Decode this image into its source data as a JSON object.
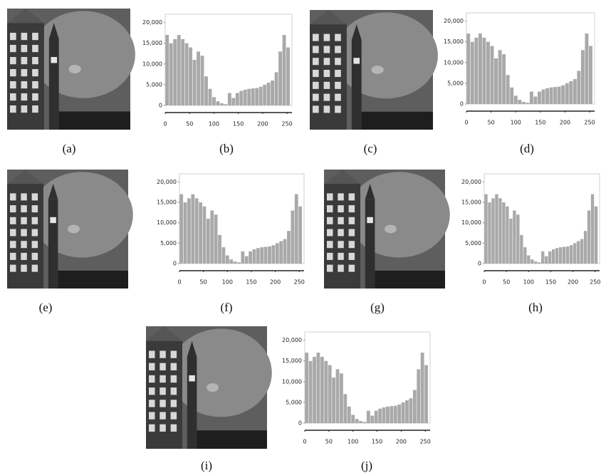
{
  "chart_data": [
    {
      "type": "histogram",
      "caption": "(b)",
      "bins": [
        0,
        8,
        16,
        24,
        32,
        40,
        48,
        56,
        64,
        72,
        80,
        88,
        96,
        104,
        112,
        120,
        128,
        136,
        144,
        152,
        160,
        168,
        176,
        184,
        192,
        200,
        208,
        216,
        224,
        232,
        240,
        248,
        256
      ],
      "values": [
        17000,
        15000,
        16000,
        17000,
        16000,
        15000,
        14000,
        11000,
        13000,
        12000,
        7000,
        4000,
        2000,
        1000,
        500,
        300,
        3000,
        1800,
        3000,
        3500,
        3800,
        4000,
        4100,
        4200,
        4500,
        5000,
        5500,
        6000,
        8000,
        13000,
        17000,
        14000
      ],
      "color": "#a9a9a9",
      "xlim": [
        0,
        260
      ],
      "xticks": [
        0,
        50,
        100,
        150,
        200,
        250
      ],
      "ylim": [
        0,
        22000
      ],
      "yticks": [
        0,
        {
          "value": 5000,
          "label": "5,000"
        },
        {
          "value": 10000,
          "label": "10,000"
        },
        {
          "value": 15000,
          "label": "15,000"
        },
        {
          "value": 20000,
          "label": "20,000"
        }
      ]
    },
    {
      "type": "histogram",
      "caption": "(d)",
      "bins": [
        0,
        8,
        16,
        24,
        32,
        40,
        48,
        56,
        64,
        72,
        80,
        88,
        96,
        104,
        112,
        120,
        128,
        136,
        144,
        152,
        160,
        168,
        176,
        184,
        192,
        200,
        208,
        216,
        224,
        232,
        240,
        248,
        256
      ],
      "values": [
        17000,
        15000,
        16000,
        17000,
        16000,
        15000,
        14000,
        11000,
        13000,
        12000,
        7000,
        4000,
        2000,
        1000,
        500,
        300,
        3000,
        1800,
        3000,
        3500,
        3800,
        4000,
        4100,
        4200,
        4500,
        5000,
        5500,
        6000,
        8000,
        13000,
        17000,
        14000
      ],
      "color": "#a9a9a9",
      "xlim": [
        0,
        260
      ],
      "xticks": [
        0,
        50,
        100,
        150,
        200,
        250
      ],
      "ylim": [
        0,
        22000
      ],
      "yticks": [
        0,
        {
          "value": 5000,
          "label": "5,000"
        },
        {
          "value": 10000,
          "label": "10,000"
        },
        {
          "value": 15000,
          "label": "15,000"
        },
        {
          "value": 20000,
          "label": "20,000"
        }
      ]
    },
    {
      "type": "histogram",
      "caption": "(f)",
      "bins": [
        0,
        8,
        16,
        24,
        32,
        40,
        48,
        56,
        64,
        72,
        80,
        88,
        96,
        104,
        112,
        120,
        128,
        136,
        144,
        152,
        160,
        168,
        176,
        184,
        192,
        200,
        208,
        216,
        224,
        232,
        240,
        248,
        256
      ],
      "values": [
        17000,
        15000,
        16000,
        17000,
        16000,
        15000,
        14000,
        11000,
        13000,
        12000,
        7000,
        4000,
        2000,
        1000,
        500,
        300,
        3000,
        1800,
        3000,
        3500,
        3800,
        4000,
        4100,
        4200,
        4500,
        5000,
        5500,
        6000,
        8000,
        13000,
        17000,
        14000
      ],
      "color": "#a9a9a9",
      "xlim": [
        0,
        260
      ],
      "xticks": [
        0,
        50,
        100,
        150,
        200,
        250
      ],
      "ylim": [
        0,
        22000
      ],
      "yticks": [
        0,
        {
          "value": 5000,
          "label": "5,000"
        },
        {
          "value": 10000,
          "label": "10,000"
        },
        {
          "value": 15000,
          "label": "15,000"
        },
        {
          "value": 20000,
          "label": "20,000"
        }
      ]
    },
    {
      "type": "histogram",
      "caption": "(h)",
      "bins": [
        0,
        8,
        16,
        24,
        32,
        40,
        48,
        56,
        64,
        72,
        80,
        88,
        96,
        104,
        112,
        120,
        128,
        136,
        144,
        152,
        160,
        168,
        176,
        184,
        192,
        200,
        208,
        216,
        224,
        232,
        240,
        248,
        256
      ],
      "values": [
        17000,
        15000,
        16000,
        17000,
        16000,
        15000,
        14000,
        11000,
        13000,
        12000,
        7000,
        4000,
        2000,
        1000,
        500,
        300,
        3000,
        1800,
        3000,
        3500,
        3800,
        4000,
        4100,
        4200,
        4500,
        5000,
        5500,
        6000,
        8000,
        13000,
        17000,
        14000
      ],
      "color": "#a9a9a9",
      "xlim": [
        0,
        260
      ],
      "xticks": [
        0,
        50,
        100,
        150,
        200,
        250
      ],
      "ylim": [
        0,
        22000
      ],
      "yticks": [
        0,
        {
          "value": 5000,
          "label": "5,000"
        },
        {
          "value": 10000,
          "label": "10,000"
        },
        {
          "value": 15000,
          "label": "15,000"
        },
        {
          "value": 20000,
          "label": "20,000"
        }
      ]
    },
    {
      "type": "histogram",
      "caption": "(j)",
      "bins": [
        0,
        8,
        16,
        24,
        32,
        40,
        48,
        56,
        64,
        72,
        80,
        88,
        96,
        104,
        112,
        120,
        128,
        136,
        144,
        152,
        160,
        168,
        176,
        184,
        192,
        200,
        208,
        216,
        224,
        232,
        240,
        248,
        256
      ],
      "values": [
        17000,
        15000,
        16000,
        17000,
        16000,
        15000,
        14000,
        11000,
        13000,
        12000,
        7000,
        4000,
        2000,
        1000,
        500,
        300,
        3000,
        1800,
        3000,
        3500,
        3800,
        4000,
        4100,
        4200,
        4500,
        5000,
        5500,
        6000,
        8000,
        13000,
        17000,
        14000
      ],
      "color": "#a9a9a9",
      "xlim": [
        0,
        260
      ],
      "xticks": [
        0,
        50,
        100,
        150,
        200,
        250
      ],
      "ylim": [
        0,
        22000
      ],
      "yticks": [
        0,
        {
          "value": 5000,
          "label": "5,000"
        },
        {
          "value": 10000,
          "label": "10,000"
        },
        {
          "value": 15000,
          "label": "15,000"
        },
        {
          "value": 20000,
          "label": "20,000"
        }
      ]
    }
  ],
  "image_captions": [
    "(a)",
    "(c)",
    "(e)",
    "(g)",
    "(i)"
  ]
}
